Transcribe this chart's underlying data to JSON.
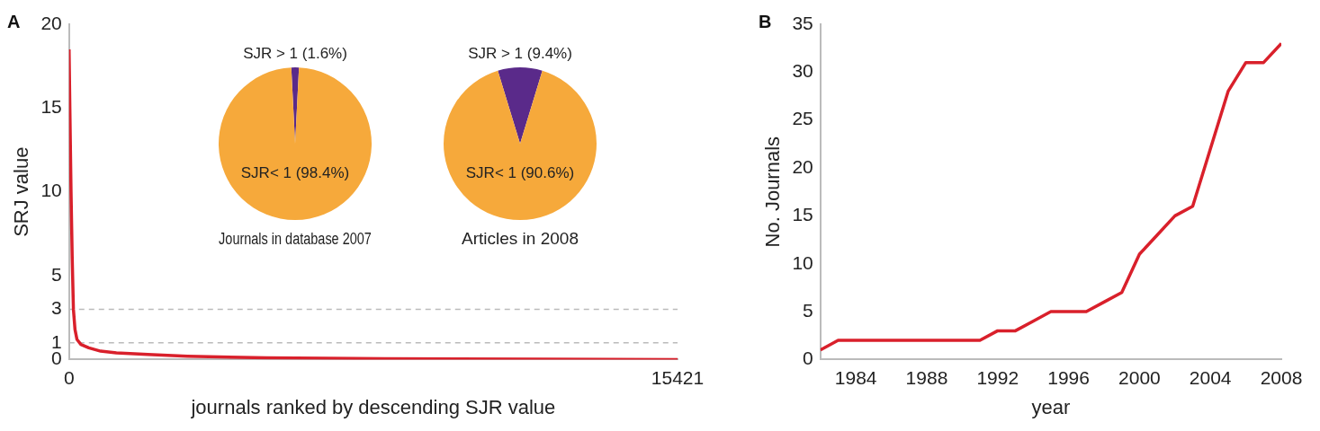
{
  "chart_data": [
    {
      "type": "line",
      "title": "A",
      "xlabel": "journals ranked by descending SJR value",
      "ylabel": "SRJ value",
      "xlim": [
        0,
        15421
      ],
      "xticks": [
        0,
        15421
      ],
      "ylim": [
        0,
        20
      ],
      "yticks": [
        0,
        1,
        3,
        5,
        10,
        15,
        20
      ],
      "grid": false,
      "marker": "none",
      "line_style": "solid",
      "ref_lines": [
        {
          "axis": "y",
          "value": 3,
          "color": "#bbbbbb",
          "line_style": "dashed"
        },
        {
          "axis": "y",
          "value": 1,
          "color": "#bbbbbb",
          "line_style": "dashed"
        }
      ],
      "series": [
        {
          "color": "#d9202b",
          "x": [
            0,
            20,
            50,
            80,
            110,
            150,
            200,
            300,
            500,
            800,
            1200,
            2000,
            3000,
            5000,
            8000,
            12000,
            15421
          ],
          "values": [
            18.5,
            15,
            10,
            6,
            3,
            1.8,
            1.2,
            0.9,
            0.7,
            0.5,
            0.4,
            0.3,
            0.2,
            0.1,
            0.05,
            0.02,
            0
          ]
        }
      ]
    },
    {
      "type": "pie",
      "title": "Journals in database 2007",
      "categories": [
        "SJR > 1 (1.6%)",
        "SJR< 1 (98.4%)"
      ],
      "values": [
        1.6,
        98.4
      ],
      "colors": [
        "#5a2a8a",
        "#f6a93b"
      ]
    },
    {
      "type": "pie",
      "title": "Articles in 2008",
      "categories": [
        "SJR > 1 (9.4%)",
        "SJR< 1 (90.6%)"
      ],
      "values": [
        9.4,
        90.6
      ],
      "colors": [
        "#5a2a8a",
        "#f6a93b"
      ]
    },
    {
      "type": "line",
      "title": "B",
      "xlabel": "year",
      "ylabel": "No. Journals",
      "xlim": [
        1982,
        2008
      ],
      "xticks": [
        1984,
        1988,
        1992,
        1996,
        2000,
        2004,
        2008
      ],
      "ylim": [
        0,
        35
      ],
      "yticks": [
        0,
        5,
        10,
        15,
        20,
        25,
        30,
        35
      ],
      "grid": false,
      "marker": "none",
      "line_style": "solid",
      "series": [
        {
          "color": "#d9202b",
          "x": [
            1982,
            1983,
            1984,
            1985,
            1986,
            1987,
            1988,
            1989,
            1990,
            1991,
            1992,
            1993,
            1994,
            1995,
            1996,
            1997,
            1998,
            1999,
            2000,
            2001,
            2002,
            2003,
            2004,
            2005,
            2006,
            2007,
            2008
          ],
          "values": [
            1,
            2,
            2,
            2,
            2,
            2,
            2,
            2,
            2,
            2,
            3,
            3,
            4,
            5,
            5,
            5,
            6,
            7,
            11,
            13,
            15,
            16,
            22,
            28,
            31,
            31,
            33
          ]
        }
      ]
    }
  ]
}
